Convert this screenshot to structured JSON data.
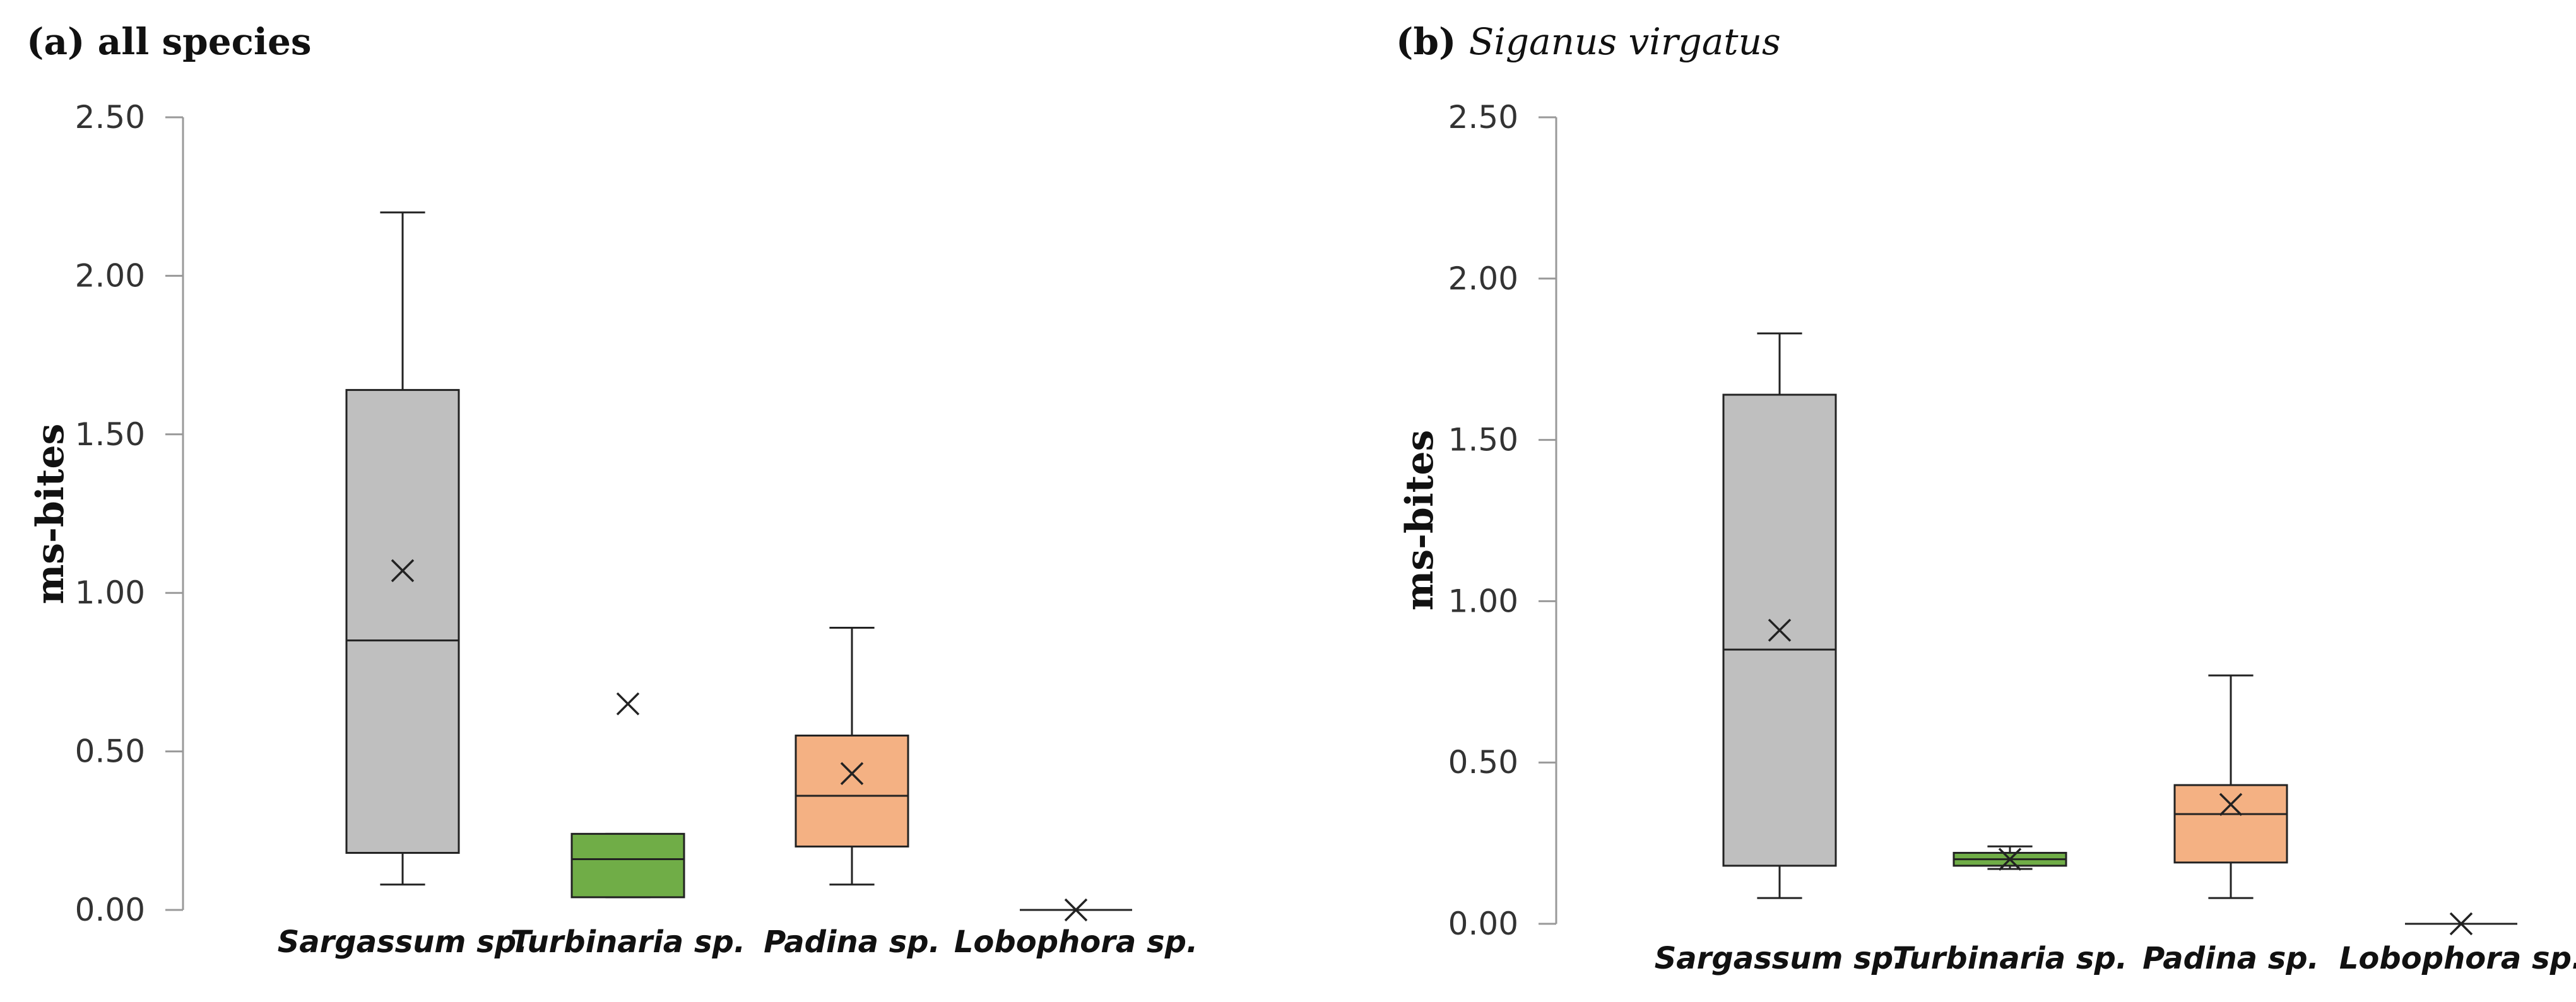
{
  "chart_data": [
    {
      "type": "box",
      "panel_label": "(a)",
      "title_plain": "all species",
      "title_italic": "",
      "ylabel": "ms-bites",
      "ylim": [
        0,
        2.5
      ],
      "yticks": [
        "0.00",
        "0.50",
        "1.00",
        "1.50",
        "2.00",
        "2.50"
      ],
      "categories": [
        "Sargassum sp.",
        "Turbinaria sp.",
        "Padina sp.",
        "Lobophora sp."
      ],
      "boxes": [
        {
          "name": "Sargassum sp.",
          "min": 0.08,
          "q1": 0.18,
          "median": 0.85,
          "q3": 1.64,
          "max": 2.2,
          "mean": 1.07,
          "color": "#bfbfbf"
        },
        {
          "name": "Turbinaria sp.",
          "min": 0.04,
          "q1": 0.04,
          "median": 0.16,
          "q3": 0.24,
          "max": 0.24,
          "mean": 0.65,
          "color": "#70ad47"
        },
        {
          "name": "Padina sp.",
          "min": 0.08,
          "q1": 0.2,
          "median": 0.36,
          "q3": 0.55,
          "max": 0.89,
          "mean": 0.43,
          "color": "#f4b183"
        },
        {
          "name": "Lobophora sp.",
          "min": 0.0,
          "q1": 0.0,
          "median": 0.0,
          "q3": 0.0,
          "max": 0.0,
          "mean": 0.0,
          "color": "#ffffff"
        }
      ]
    },
    {
      "type": "box",
      "panel_label": "(b)",
      "title_plain": "",
      "title_italic": "Siganus virgatus",
      "ylabel": "ms-bites",
      "ylim": [
        0,
        2.5
      ],
      "yticks": [
        "0.00",
        "0.50",
        "1.00",
        "1.50",
        "2.00",
        "2.50"
      ],
      "categories": [
        "Sargassum sp.",
        "Turbinaria sp.",
        "Padina sp.",
        "Lobophora sp."
      ],
      "boxes": [
        {
          "name": "Sargassum sp.",
          "min": 0.08,
          "q1": 0.18,
          "median": 0.85,
          "q3": 1.64,
          "max": 1.83,
          "mean": 0.91,
          "color": "#bfbfbf"
        },
        {
          "name": "Turbinaria sp.",
          "min": 0.17,
          "q1": 0.18,
          "median": 0.2,
          "q3": 0.22,
          "max": 0.24,
          "mean": 0.2,
          "color": "#70ad47"
        },
        {
          "name": "Padina sp.",
          "min": 0.08,
          "q1": 0.19,
          "median": 0.34,
          "q3": 0.43,
          "max": 0.77,
          "mean": 0.37,
          "color": "#f4b183"
        },
        {
          "name": "Lobophora sp.",
          "min": 0.0,
          "q1": 0.0,
          "median": 0.0,
          "q3": 0.0,
          "max": 0.0,
          "mean": 0.0,
          "color": "#ffffff"
        }
      ]
    }
  ]
}
